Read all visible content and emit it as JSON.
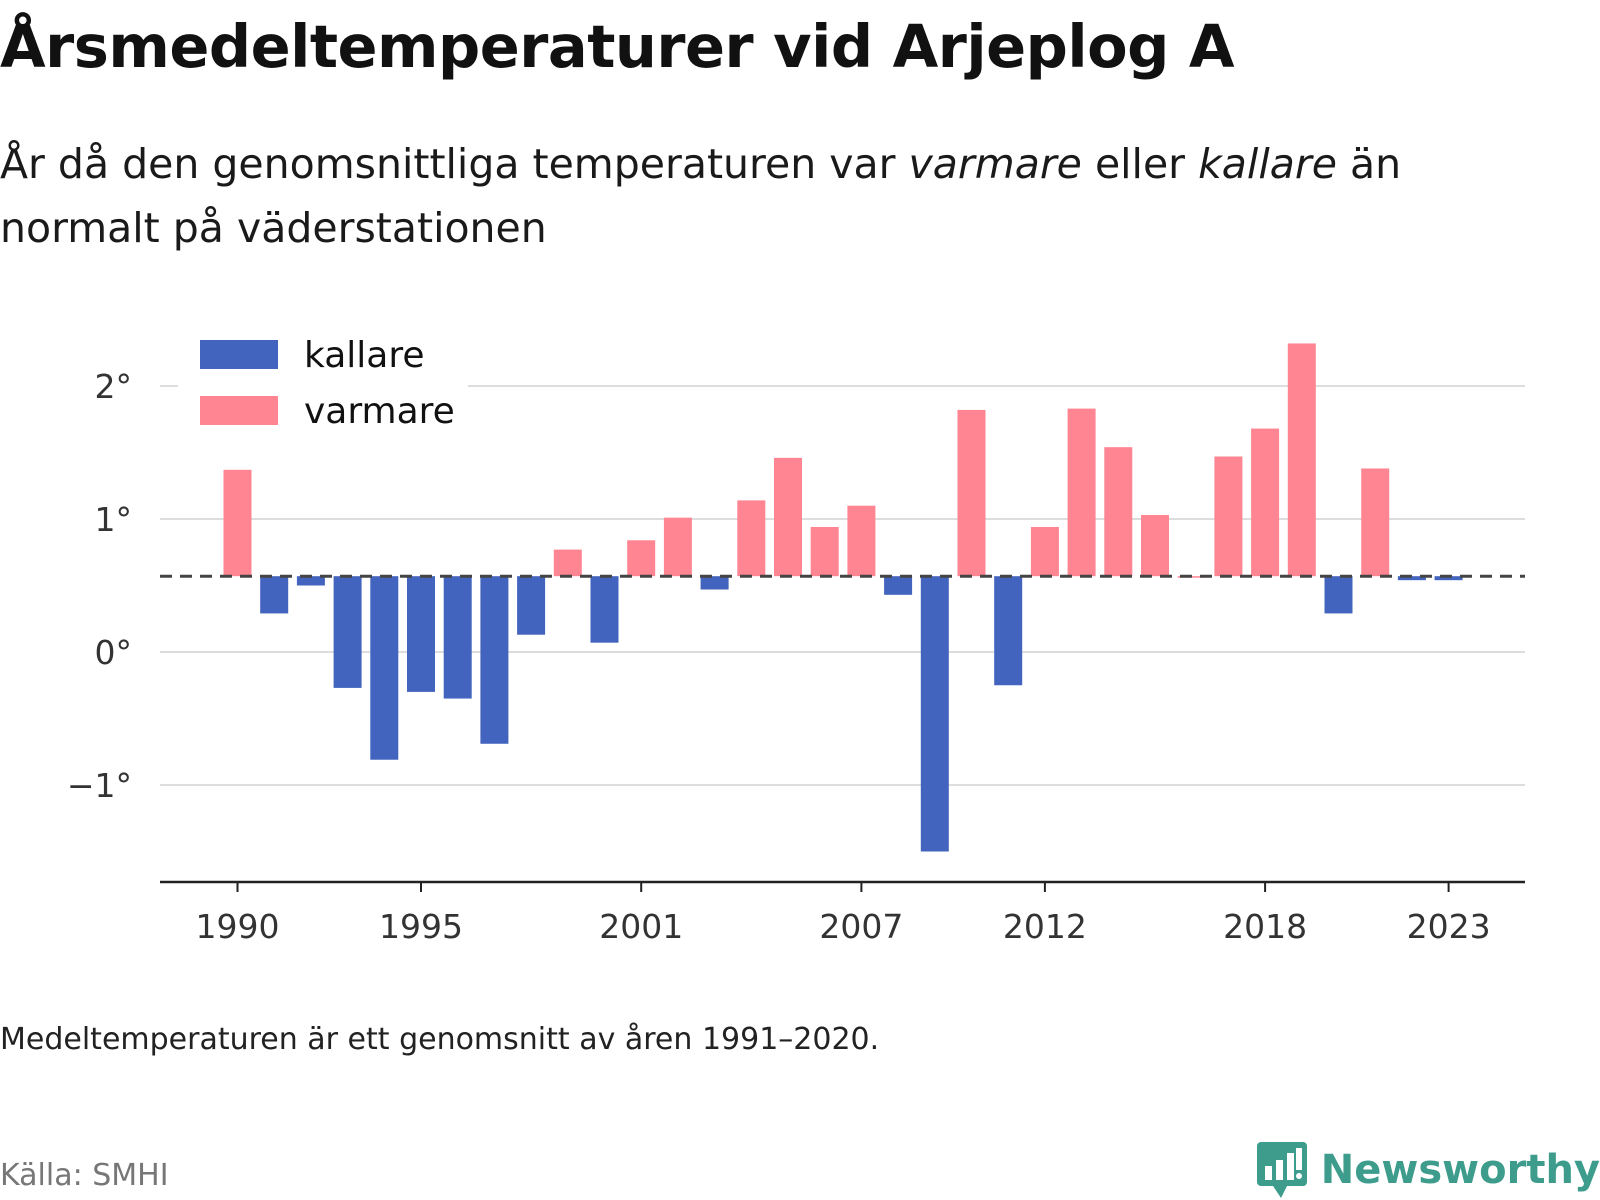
{
  "header": {
    "title": "Årsmedeltemperaturer vid Arjeplog A",
    "subtitle_part1": "År då den genomsnittliga temperaturen var ",
    "subtitle_warm": "varmare",
    "subtitle_part2": " eller ",
    "subtitle_cold": "kallare",
    "subtitle_part3": " än normalt på väderstationen"
  },
  "footer": {
    "note": "Medeltemperaturen är ett genomsnitt av åren 1991–2020.",
    "source": "Källa: SMHI",
    "logo_text": "Newsworthy"
  },
  "chart_data": {
    "type": "bar",
    "title": "Årsmedeltemperaturer vid Arjeplog A",
    "xlabel": "",
    "ylabel": "",
    "baseline": 0.57,
    "ylim": [
      -1.7,
      2.5
    ],
    "yticks": [
      -1,
      0,
      1,
      2
    ],
    "ytick_labels": [
      "−1°",
      "0°",
      "1°",
      "2°"
    ],
    "xticks": [
      1990,
      1995,
      2001,
      2007,
      2012,
      2018,
      2023
    ],
    "grid": true,
    "legend": {
      "placement": "top-left",
      "entries": [
        {
          "key": "kallare",
          "label": "kallare",
          "color": "#4264be"
        },
        {
          "key": "varmare",
          "label": "varmare",
          "color": "#ff8592"
        }
      ]
    },
    "categories": [
      1990,
      1991,
      1992,
      1993,
      1994,
      1995,
      1996,
      1997,
      1998,
      1999,
      2000,
      2001,
      2002,
      2003,
      2004,
      2005,
      2006,
      2007,
      2008,
      2009,
      2010,
      2011,
      2012,
      2013,
      2014,
      2015,
      2016,
      2017,
      2018,
      2019,
      2020,
      2021,
      2022,
      2023
    ],
    "values": [
      1.37,
      0.29,
      0.5,
      -0.27,
      -0.81,
      -0.3,
      -0.35,
      -0.69,
      0.13,
      0.77,
      0.07,
      0.84,
      1.01,
      0.47,
      1.14,
      1.46,
      0.94,
      1.1,
      0.43,
      -1.5,
      1.82,
      -0.25,
      0.94,
      1.83,
      1.54,
      1.03,
      0.57,
      1.47,
      1.68,
      2.32,
      0.29,
      1.38,
      0.54,
      0.54
    ]
  }
}
